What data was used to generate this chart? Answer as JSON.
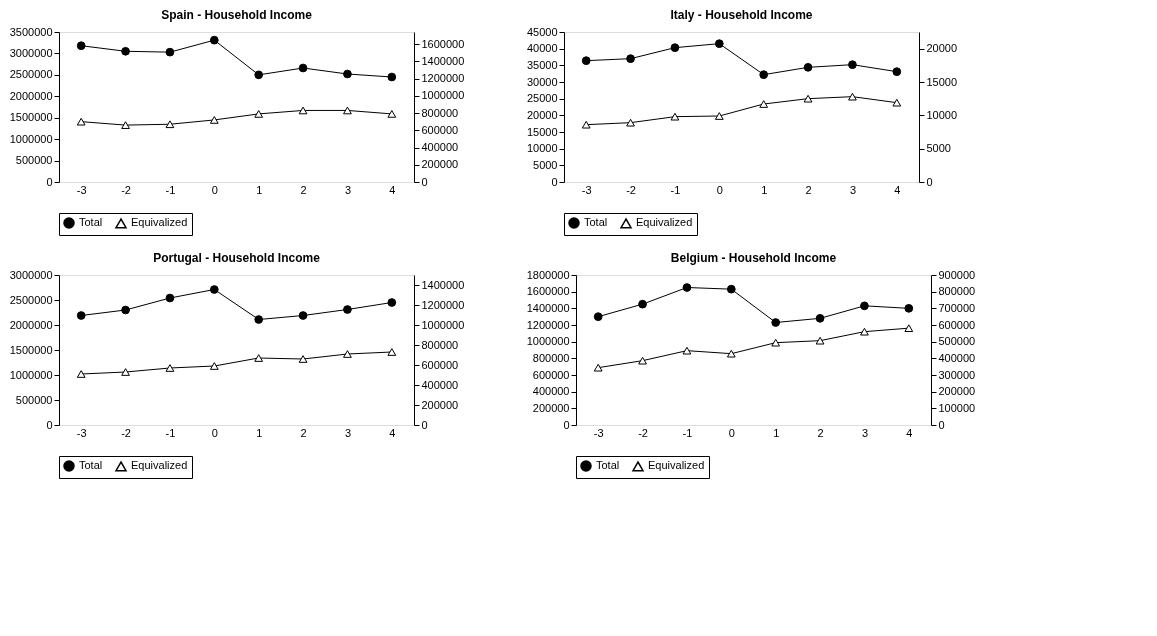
{
  "chart_data": [
    {
      "type": "line",
      "title": "Spain - Household Income",
      "categories": [
        "-3",
        "-2",
        "-1",
        "0",
        "1",
        "2",
        "3",
        "4"
      ],
      "ylim": [
        0,
        3500000
      ],
      "yticks": [
        0,
        500000,
        1000000,
        1500000,
        2000000,
        2500000,
        3000000,
        3500000
      ],
      "y2lim": [
        0,
        1740000
      ],
      "y2ticks": [
        0,
        200000,
        400000,
        600000,
        800000,
        1000000,
        1200000,
        1400000,
        1600000
      ],
      "grid": false,
      "legend": "bottom",
      "line_style": "solid",
      "series": [
        {
          "name": "Total",
          "color": "#000000",
          "marker": "circle",
          "values": [
            3180000,
            3050000,
            3030000,
            3310000,
            2500000,
            2660000,
            2520000,
            2450000
          ]
        },
        {
          "name": "Equivalized",
          "color": "#000000",
          "marker": "triangle",
          "axis": "y2",
          "values": [
            700000,
            660000,
            670000,
            720000,
            790000,
            830000,
            830000,
            790000
          ]
        }
      ]
    },
    {
      "type": "line",
      "title": "Italy - Household Income",
      "categories": [
        "-3",
        "-2",
        "-1",
        "0",
        "1",
        "2",
        "3",
        "4"
      ],
      "ylim": [
        0,
        45000
      ],
      "yticks": [
        0,
        5000,
        10000,
        15000,
        20000,
        25000,
        30000,
        35000,
        40000,
        45000
      ],
      "y2lim": [
        0,
        22500
      ],
      "y2ticks": [
        0,
        5000,
        10000,
        15000,
        20000
      ],
      "grid": false,
      "legend": "bottom",
      "line_style": "solid",
      "series": [
        {
          "name": "Total",
          "color": "#000000",
          "marker": "circle",
          "values": [
            36400,
            37000,
            40300,
            41500,
            32200,
            34400,
            35200,
            33100
          ]
        },
        {
          "name": "Equivalized",
          "color": "#000000",
          "marker": "triangle",
          "axis": "y2",
          "values": [
            8600,
            8900,
            9800,
            9900,
            11700,
            12500,
            12800,
            11900
          ]
        }
      ]
    },
    {
      "type": "line",
      "title": "Portugal - Household Income",
      "categories": [
        "-3",
        "-2",
        "-1",
        "0",
        "1",
        "2",
        "3",
        "4"
      ],
      "ylim": [
        0,
        3000000
      ],
      "yticks": [
        0,
        500000,
        1000000,
        1500000,
        2000000,
        2500000,
        3000000
      ],
      "y2lim": [
        0,
        1500000
      ],
      "y2ticks": [
        0,
        200000,
        400000,
        600000,
        800000,
        1000000,
        1200000,
        1400000
      ],
      "grid": false,
      "legend": "bottom",
      "line_style": "solid",
      "series": [
        {
          "name": "Total",
          "color": "#000000",
          "marker": "circle",
          "values": [
            2190000,
            2300000,
            2540000,
            2710000,
            2110000,
            2190000,
            2310000,
            2450000
          ]
        },
        {
          "name": "Equivalized",
          "color": "#000000",
          "marker": "triangle",
          "axis": "y2",
          "values": [
            510000,
            530000,
            570000,
            590000,
            670000,
            660000,
            710000,
            730000
          ]
        }
      ]
    },
    {
      "type": "line",
      "title": "Belgium - Household Income",
      "categories": [
        "-3",
        "-2",
        "-1",
        "0",
        "1",
        "2",
        "3",
        "4"
      ],
      "ylim": [
        0,
        1800000
      ],
      "yticks": [
        0,
        200000,
        400000,
        600000,
        800000,
        1000000,
        1200000,
        1400000,
        1600000,
        1800000
      ],
      "y2lim": [
        0,
        900000
      ],
      "y2ticks": [
        0,
        100000,
        200000,
        300000,
        400000,
        500000,
        600000,
        700000,
        800000,
        900000
      ],
      "grid": false,
      "legend": "bottom",
      "line_style": "solid",
      "series": [
        {
          "name": "Total",
          "color": "#000000",
          "marker": "circle",
          "values": [
            1300000,
            1450000,
            1650000,
            1630000,
            1230000,
            1280000,
            1430000,
            1400000
          ]
        },
        {
          "name": "Equivalized",
          "color": "#000000",
          "marker": "triangle",
          "axis": "y2",
          "values": [
            344000,
            386000,
            446000,
            428000,
            494000,
            506000,
            560000,
            581000
          ]
        }
      ]
    }
  ]
}
